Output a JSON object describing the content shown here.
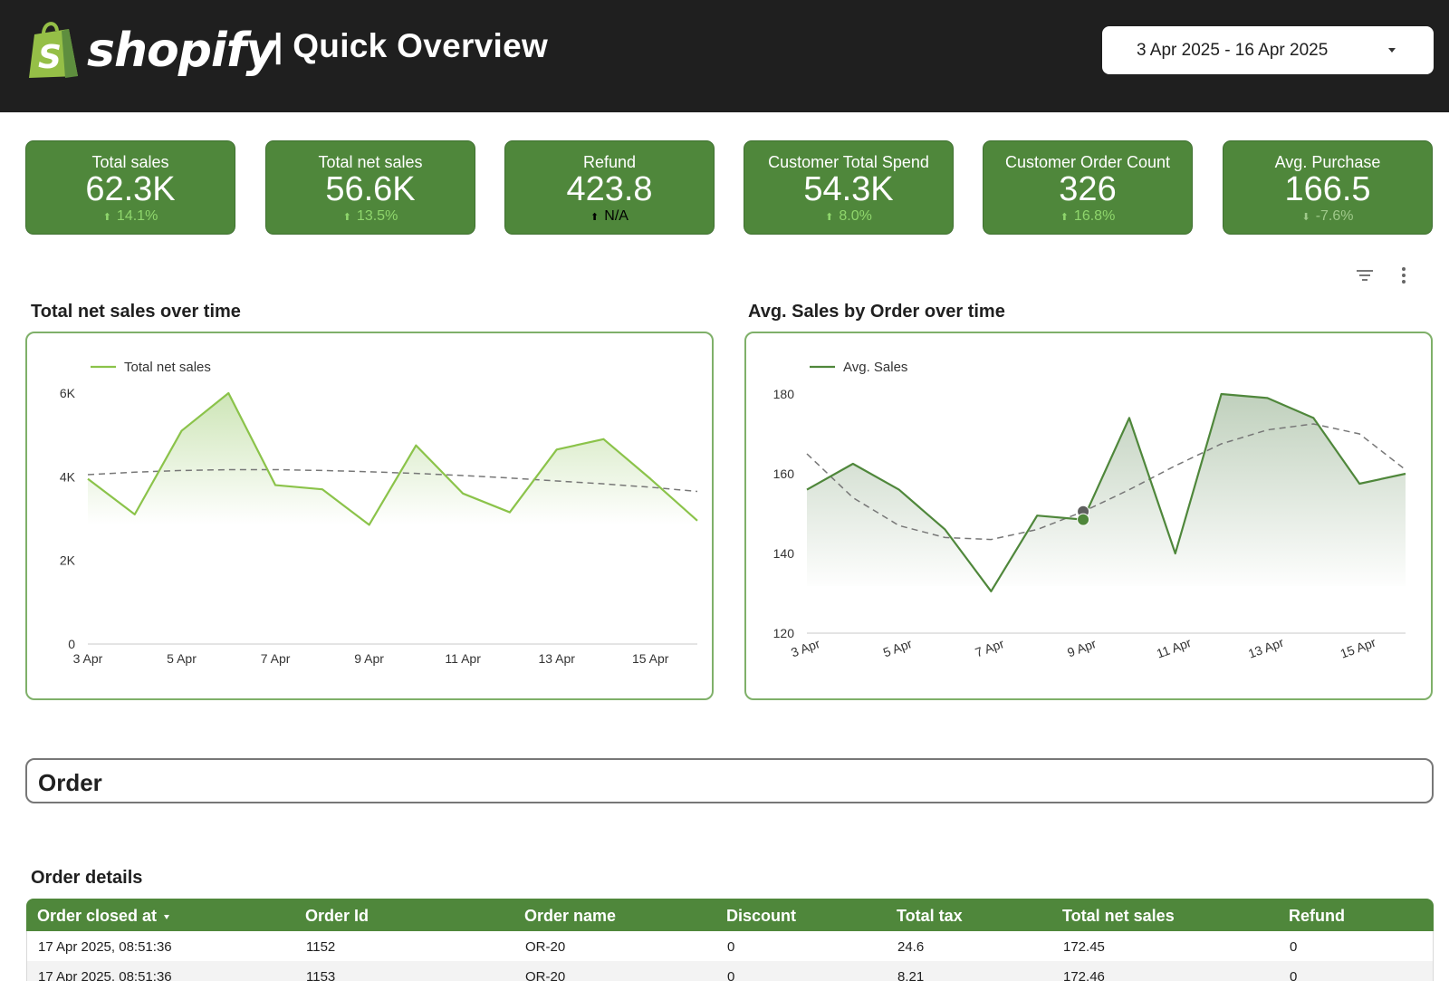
{
  "header": {
    "brand": "shopify",
    "page_title": "| Quick Overview",
    "date_range": "3 Apr 2025 - 16 Apr 2025",
    "brand_color": "#95bf47",
    "bar_color": "#1f1f1f"
  },
  "kpis": [
    {
      "label": "Total sales",
      "value": "62.3K",
      "delta": "14.1%",
      "direction": "up"
    },
    {
      "label": "Total net sales",
      "value": "56.6K",
      "delta": "13.5%",
      "direction": "up"
    },
    {
      "label": "Refund",
      "value": "423.8",
      "delta": "N/A",
      "direction": "neutral"
    },
    {
      "label": "Customer Total Spend",
      "value": "54.3K",
      "delta": "8.0%",
      "direction": "up"
    },
    {
      "label": "Customer Order Count",
      "value": "326",
      "delta": "16.8%",
      "direction": "up"
    },
    {
      "label": "Avg. Purchase",
      "value": "166.5",
      "delta": "-7.6%",
      "direction": "down"
    }
  ],
  "toolbar": {
    "filter_icon": "filter-icon",
    "more_icon": "more-vert-icon"
  },
  "chart_data": [
    {
      "type": "line",
      "title": "Total net sales over time",
      "legend_position": "top-left",
      "x": [
        "3 Apr",
        "4 Apr",
        "5 Apr",
        "6 Apr",
        "7 Apr",
        "8 Apr",
        "9 Apr",
        "10 Apr",
        "11 Apr",
        "12 Apr",
        "13 Apr",
        "14 Apr",
        "15 Apr",
        "16 Apr"
      ],
      "x_tick_labels": [
        "3 Apr",
        "5 Apr",
        "7 Apr",
        "9 Apr",
        "11 Apr",
        "13 Apr",
        "15 Apr"
      ],
      "y_tick_labels": [
        "0",
        "2K",
        "4K",
        "6K"
      ],
      "y_ticks": [
        0,
        2000,
        4000,
        6000
      ],
      "ylim": [
        0,
        6000
      ],
      "series": [
        {
          "name": "Total net sales",
          "values": [
            3950,
            3100,
            5100,
            6000,
            3800,
            3700,
            2850,
            4750,
            3600,
            3150,
            4650,
            4900,
            3950,
            2950
          ],
          "color": "#8bc34a"
        }
      ],
      "trendline": [
        4050,
        4110,
        4150,
        4170,
        4170,
        4150,
        4120,
        4080,
        4030,
        3970,
        3900,
        3830,
        3750,
        3650
      ],
      "grid": false
    },
    {
      "type": "line",
      "title": "Avg. Sales by Order over time",
      "legend_position": "top-left",
      "x": [
        "3 Apr",
        "4 Apr",
        "5 Apr",
        "6 Apr",
        "7 Apr",
        "8 Apr",
        "9 Apr",
        "10 Apr",
        "11 Apr",
        "12 Apr",
        "13 Apr",
        "14 Apr",
        "15 Apr",
        "16 Apr"
      ],
      "x_tick_labels": [
        "3 Apr",
        "5 Apr",
        "7 Apr",
        "9 Apr",
        "11 Apr",
        "13 Apr",
        "15 Apr"
      ],
      "y_tick_labels": [
        "120",
        "140",
        "160",
        "180"
      ],
      "y_ticks": [
        120,
        140,
        160,
        180
      ],
      "ylim": [
        120,
        180
      ],
      "series": [
        {
          "name": "Avg. Sales",
          "values": [
            156,
            162.5,
            156,
            146,
            130.5,
            149.5,
            148.5,
            174,
            140,
            180,
            179,
            174,
            157.5,
            160
          ],
          "color": "#4f873b"
        }
      ],
      "trendline": [
        165,
        154,
        147,
        144,
        143.5,
        146,
        150.5,
        156,
        162,
        167.5,
        171,
        172.5,
        170,
        161
      ],
      "highlight_index": 6,
      "grid": false
    }
  ],
  "section": {
    "title": "Order"
  },
  "table": {
    "title": "Order details",
    "columns": [
      "Order closed at",
      "Order Id",
      "Order name",
      "Discount",
      "Total tax",
      "Total net sales",
      "Refund"
    ],
    "rows": [
      [
        "17 Apr 2025, 08:51:36",
        "1152",
        "OR-20",
        "0",
        "24.6",
        "172.45",
        "0"
      ],
      [
        "17 Apr 2025, 08:51:36",
        "1153",
        "OR-20",
        "0",
        "8.21",
        "172.46",
        "0"
      ]
    ]
  }
}
